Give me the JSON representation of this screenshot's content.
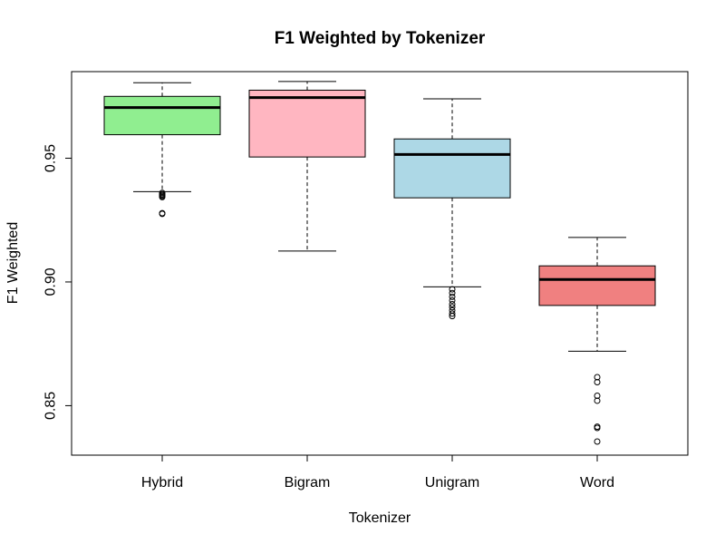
{
  "chart_data": {
    "type": "box",
    "title": "F1 Weighted by Tokenizer",
    "xlabel": "Tokenizer",
    "ylabel": "F1 Weighted",
    "ylim": [
      0.83,
      0.985
    ],
    "yticks": [
      0.85,
      0.9,
      0.95
    ],
    "ytick_labels": [
      "0.85",
      "0.90",
      "0.95"
    ],
    "grid": false,
    "legend": "none",
    "categories": [
      "Hybrid",
      "Bigram",
      "Unigram",
      "Word"
    ],
    "boxes": [
      {
        "category": "Hybrid",
        "color": "#90ee90",
        "whisker_low": 0.9365,
        "q1": 0.9595,
        "median": 0.9705,
        "q3": 0.975,
        "whisker_high": 0.9805,
        "outliers": [
          0.9275,
          0.9278,
          0.9343,
          0.9347,
          0.9351,
          0.9355,
          0.936
        ]
      },
      {
        "category": "Bigram",
        "color": "#ffb6c1",
        "whisker_low": 0.9125,
        "q1": 0.9505,
        "median": 0.9745,
        "q3": 0.9775,
        "whisker_high": 0.981,
        "outliers": []
      },
      {
        "category": "Unigram",
        "color": "#add8e6",
        "whisker_low": 0.898,
        "q1": 0.934,
        "median": 0.9515,
        "q3": 0.9578,
        "whisker_high": 0.974,
        "outliers": [
          0.8862,
          0.8872,
          0.8885,
          0.8898,
          0.891,
          0.8925,
          0.894,
          0.8955,
          0.897
        ]
      },
      {
        "category": "Word",
        "color": "#f08080",
        "whisker_low": 0.872,
        "q1": 0.8905,
        "median": 0.901,
        "q3": 0.9065,
        "whisker_high": 0.918,
        "outliers": [
          0.8355,
          0.841,
          0.8415,
          0.852,
          0.854,
          0.8595,
          0.8615
        ]
      }
    ]
  }
}
